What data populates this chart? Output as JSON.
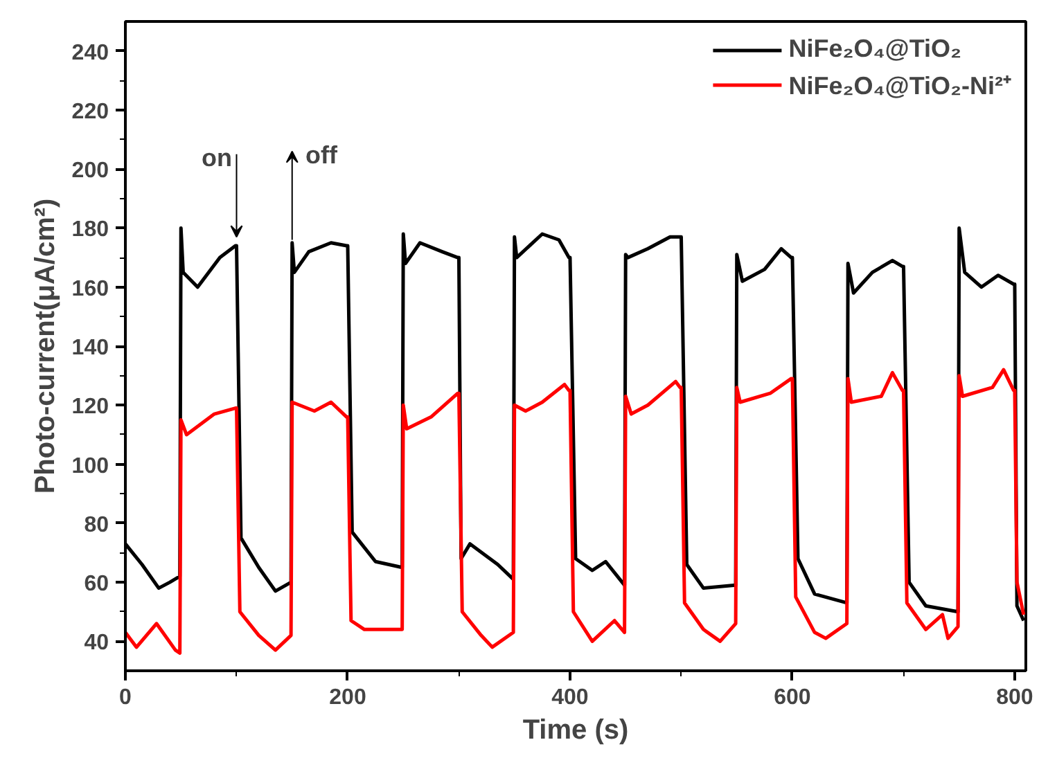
{
  "chart_data": {
    "type": "line",
    "xlabel": "Time (s)",
    "ylabel": "Photo-current(μA/cm²)",
    "xlim": [
      0,
      810
    ],
    "ylim": [
      30,
      250
    ],
    "xticks": [
      0,
      200,
      400,
      600,
      800
    ],
    "yticks": [
      40,
      60,
      80,
      100,
      120,
      140,
      160,
      180,
      200,
      220,
      240
    ],
    "grid": false,
    "legend": "top right",
    "line_style": "solid",
    "marker": "none",
    "annotations": [
      {
        "text": "on",
        "x": 100,
        "y": 175
      },
      {
        "text": "off",
        "x": 150,
        "y": 176
      }
    ],
    "series": [
      {
        "name": "NiFe₂O₄@TiO₂",
        "color": "#000000",
        "x": [
          0,
          15,
          30,
          40,
          49,
          50,
          52,
          65,
          85,
          99,
          100,
          104,
          120,
          135,
          149,
          150,
          152,
          165,
          185,
          199,
          200,
          204,
          225,
          249,
          250,
          252,
          265,
          285,
          299,
          300,
          302,
          310,
          335,
          349,
          350,
          352,
          375,
          390,
          399,
          400,
          405,
          420,
          432,
          449,
          450,
          452,
          470,
          490,
          499,
          500,
          505,
          520,
          549,
          550,
          555,
          575,
          590,
          599,
          600,
          605,
          620,
          649,
          650,
          655,
          672,
          690,
          699,
          700,
          705,
          720,
          749,
          750,
          755,
          770,
          785,
          799,
          800,
          802,
          808
        ],
        "values": [
          73,
          66,
          58,
          60,
          62,
          180,
          165,
          160,
          170,
          174,
          174,
          75,
          65,
          57,
          60,
          175,
          165,
          172,
          175,
          174,
          174,
          77,
          67,
          65,
          178,
          168,
          175,
          172,
          170,
          170,
          68,
          73,
          66,
          61,
          177,
          170,
          178,
          176,
          170,
          170,
          68,
          64,
          67,
          59,
          171,
          170,
          173,
          177,
          177,
          177,
          66,
          58,
          59,
          171,
          162,
          166,
          173,
          170,
          170,
          68,
          56,
          53,
          168,
          158,
          165,
          169,
          167,
          167,
          60,
          52,
          50,
          180,
          165,
          160,
          164,
          161,
          161,
          52,
          47
        ]
      },
      {
        "name": "NiFe₂O₄@TiO₂-Ni²⁺",
        "color": "#ff0000",
        "x": [
          0,
          10,
          28,
          45,
          49,
          50,
          55,
          80,
          99,
          100,
          103,
          120,
          135,
          149,
          150,
          170,
          185,
          199,
          200,
          203,
          215,
          249,
          250,
          253,
          275,
          299,
          300,
          303,
          320,
          330,
          349,
          350,
          360,
          375,
          395,
          399,
          400,
          403,
          420,
          440,
          449,
          450,
          455,
          470,
          495,
          499,
          500,
          503,
          520,
          535,
          549,
          550,
          553,
          580,
          599,
          600,
          603,
          620,
          630,
          649,
          650,
          653,
          680,
          690,
          699,
          700,
          703,
          720,
          735,
          740,
          749,
          750,
          753,
          780,
          790,
          799,
          800,
          802,
          808
        ],
        "values": [
          43,
          38,
          46,
          37,
          36,
          115,
          110,
          117,
          119,
          119,
          50,
          42,
          37,
          42,
          121,
          118,
          121,
          116,
          116,
          47,
          44,
          44,
          120,
          112,
          116,
          124,
          124,
          50,
          42,
          38,
          43,
          120,
          118,
          121,
          127,
          125,
          125,
          50,
          40,
          47,
          43,
          123,
          117,
          120,
          128,
          126,
          126,
          53,
          44,
          40,
          46,
          126,
          121,
          124,
          129,
          129,
          55,
          43,
          41,
          46,
          129,
          121,
          123,
          131,
          125,
          125,
          53,
          44,
          49,
          41,
          45,
          130,
          123,
          126,
          132,
          125,
          125,
          60,
          49
        ]
      }
    ]
  }
}
